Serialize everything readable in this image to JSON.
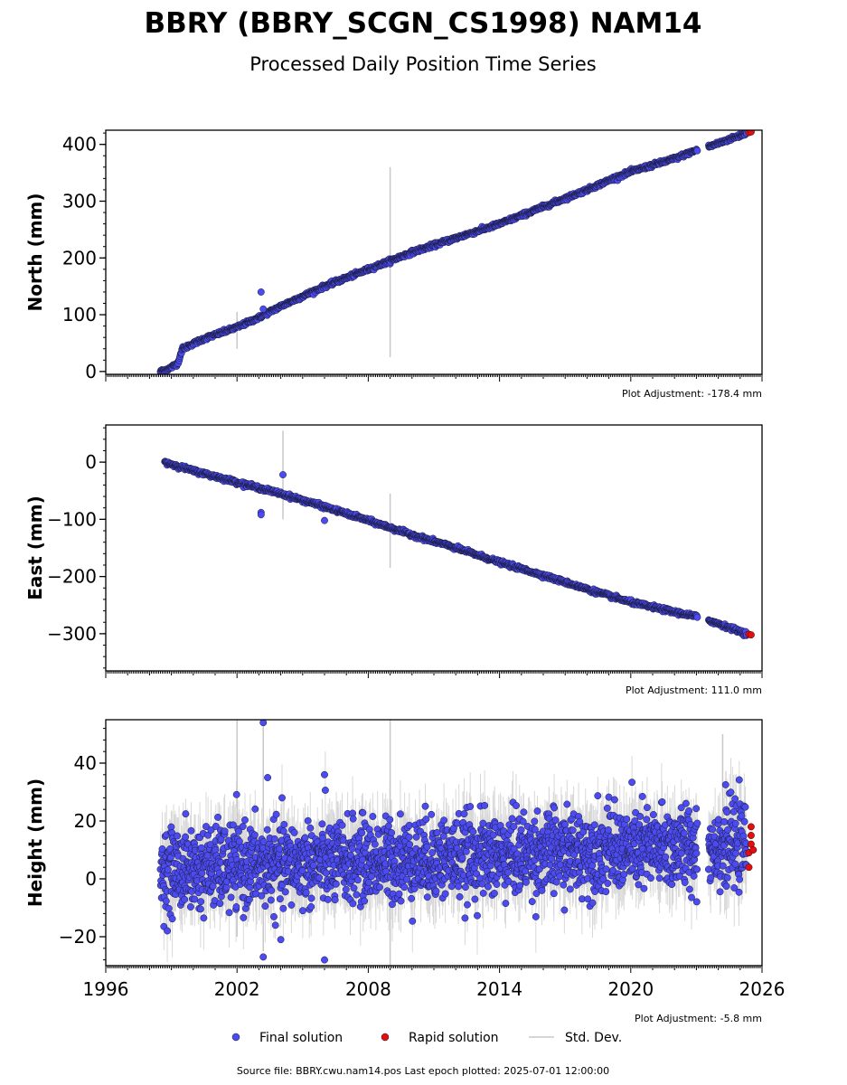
{
  "header": {
    "title": "BBRY (BBRY_SCGN_CS1998) NAM14",
    "subtitle": "Processed Daily Position Time Series"
  },
  "legend": {
    "final_label": "Final solution",
    "rapid_label": "Rapid solution",
    "stddev_label": "Std. Dev."
  },
  "footer": {
    "source": "Source file: BBRY.cwu.nam14.pos  Last epoch plotted: 2025-07-01 12:00:00"
  },
  "colors": {
    "final": "#4b4bf0",
    "rapid": "#e01010",
    "stddev": "#c8c8c8",
    "marker_edge": "#1a1a3a"
  },
  "chart_data": [
    {
      "type": "scatter",
      "ylabel": "North (mm)",
      "xlim": [
        1996,
        2026
      ],
      "ylim": [
        -5,
        425
      ],
      "yticks": [
        0,
        100,
        200,
        300,
        400
      ],
      "xtick_labels": [],
      "adjustment": "Plot Adjustment: -178.4 mm",
      "series": [
        {
          "name": "Final solution",
          "x": [
            1998.5,
            1998.9,
            1999.3,
            1999.5,
            2000.5,
            2002,
            2003,
            2004,
            2006,
            2008,
            2010,
            2012,
            2014,
            2016,
            2018,
            2019.2,
            2020,
            2022,
            2023,
            2023.5,
            2025.3
          ],
          "y": [
            0,
            5,
            15,
            40,
            58,
            78,
            95,
            115,
            150,
            180,
            210,
            235,
            260,
            290,
            320,
            340,
            352,
            375,
            390,
            395,
            420
          ]
        },
        {
          "name": "Rapid solution",
          "x": [
            2025.4,
            2025.5
          ],
          "y": [
            421,
            422
          ]
        }
      ],
      "outliers": [
        {
          "x": 2003.1,
          "y": 140
        },
        {
          "x": 2003.2,
          "y": 110
        }
      ],
      "stddev_spikes": [
        {
          "x": 2002,
          "y1": 40,
          "y2": 105
        },
        {
          "x": 2009,
          "y1": 25,
          "y2": 360
        }
      ]
    },
    {
      "type": "scatter",
      "ylabel": "East (mm)",
      "xlim": [
        1996,
        2026
      ],
      "ylim": [
        -365,
        65
      ],
      "yticks": [
        -300,
        -200,
        -100,
        0
      ],
      "xtick_labels": [],
      "adjustment": "Plot Adjustment: 111.0 mm",
      "series": [
        {
          "name": "Final solution",
          "x": [
            1998.7,
            2000,
            2002,
            2004,
            2006,
            2008,
            2010,
            2012,
            2014,
            2016,
            2018,
            2020,
            2022,
            2023,
            2023.6,
            2025.3
          ],
          "y": [
            0,
            -15,
            -35,
            -55,
            -78,
            -102,
            -127,
            -150,
            -175,
            -198,
            -222,
            -245,
            -262,
            -270,
            -277,
            -300
          ]
        },
        {
          "name": "Rapid solution",
          "x": [
            2025.4,
            2025.5
          ],
          "y": [
            -301,
            -302
          ]
        }
      ],
      "outliers": [
        {
          "x": 2003.1,
          "y": -88
        },
        {
          "x": 2003.1,
          "y": -92
        },
        {
          "x": 2004.1,
          "y": -22
        },
        {
          "x": 2006,
          "y": -102
        }
      ],
      "stddev_spikes": [
        {
          "x": 2004.1,
          "y1": -100,
          "y2": 55
        },
        {
          "x": 2009,
          "y1": -185,
          "y2": -55
        }
      ]
    },
    {
      "type": "scatter",
      "ylabel": "Height (mm)",
      "xlim": [
        1996,
        2026
      ],
      "ylim": [
        -30,
        55
      ],
      "yticks": [
        -20,
        0,
        20,
        40
      ],
      "xtick_labels": [
        "1996",
        "2002",
        "2008",
        "2014",
        "2020",
        "2026"
      ],
      "adjustment": "Plot Adjustment: -5.8 mm",
      "series": [
        {
          "name": "Final solution",
          "x_range": [
            1998.5,
            2025.3
          ],
          "mean_start": 3,
          "mean_end": 12,
          "scatter": 7
        },
        {
          "name": "Rapid solution",
          "x": [
            2025.4,
            2025.4,
            2025.5,
            2025.5,
            2025.5,
            2025.6
          ],
          "y": [
            4,
            9,
            12,
            15,
            18,
            10
          ]
        }
      ],
      "outliers": [
        {
          "x": 2003.2,
          "y": 54
        },
        {
          "x": 2003.4,
          "y": 35
        },
        {
          "x": 2006,
          "y": 36
        },
        {
          "x": 2003.2,
          "y": -27
        },
        {
          "x": 2006,
          "y": -28
        },
        {
          "x": 2004,
          "y": -21
        }
      ],
      "stddev_spikes": [
        {
          "x": 2002,
          "y1": -20,
          "y2": 55
        },
        {
          "x": 2003.2,
          "y1": -25,
          "y2": 55
        },
        {
          "x": 2009,
          "y1": -30,
          "y2": 55
        },
        {
          "x": 2024.2,
          "y1": 0,
          "y2": 50
        }
      ]
    }
  ]
}
